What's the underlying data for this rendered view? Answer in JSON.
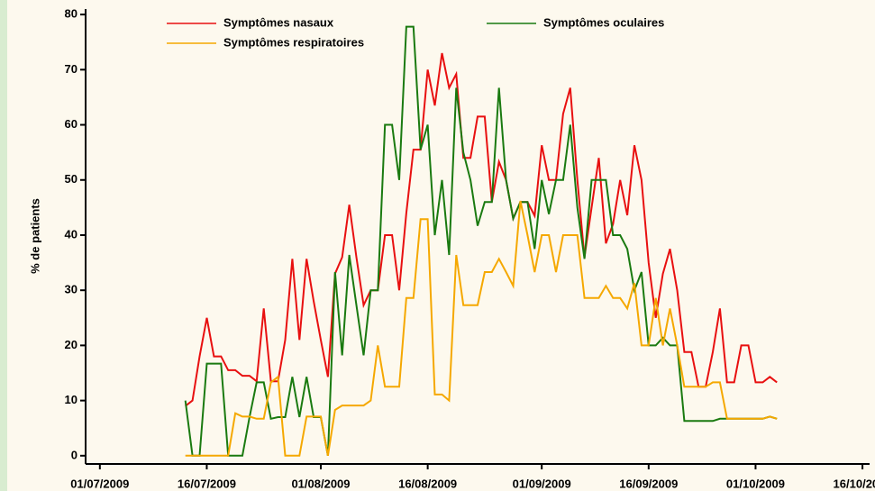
{
  "chart_data": {
    "type": "line",
    "ylabel": "% de patients",
    "x": [
      "2009-07-13",
      "2009-07-14",
      "2009-07-15",
      "2009-07-16",
      "2009-07-17",
      "2009-07-18",
      "2009-07-19",
      "2009-07-20",
      "2009-07-21",
      "2009-07-22",
      "2009-07-23",
      "2009-07-24",
      "2009-07-25",
      "2009-07-26",
      "2009-07-27",
      "2009-07-28",
      "2009-07-29",
      "2009-07-30",
      "2009-07-31",
      "2009-08-01",
      "2009-08-02",
      "2009-08-03",
      "2009-08-04",
      "2009-08-05",
      "2009-08-06",
      "2009-08-07",
      "2009-08-08",
      "2009-08-09",
      "2009-08-10",
      "2009-08-11",
      "2009-08-12",
      "2009-08-13",
      "2009-08-14",
      "2009-08-15",
      "2009-08-16",
      "2009-08-17",
      "2009-08-18",
      "2009-08-19",
      "2009-08-20",
      "2009-08-21",
      "2009-08-22",
      "2009-08-23",
      "2009-08-24",
      "2009-08-25",
      "2009-08-26",
      "2009-08-27",
      "2009-08-28",
      "2009-08-29",
      "2009-08-30",
      "2009-08-31",
      "2009-09-01",
      "2009-09-02",
      "2009-09-03",
      "2009-09-04",
      "2009-09-05",
      "2009-09-06",
      "2009-09-07",
      "2009-09-08",
      "2009-09-09",
      "2009-09-10",
      "2009-09-11",
      "2009-09-12",
      "2009-09-13",
      "2009-09-14",
      "2009-09-15",
      "2009-09-16",
      "2009-09-17",
      "2009-09-18",
      "2009-09-19",
      "2009-09-20",
      "2009-09-21",
      "2009-09-22",
      "2009-09-23",
      "2009-09-24",
      "2009-09-25",
      "2009-09-26",
      "2009-09-27",
      "2009-09-28",
      "2009-09-29",
      "2009-09-30",
      "2009-10-01",
      "2009-10-02",
      "2009-10-03",
      "2009-10-04"
    ],
    "series": [
      {
        "name": "Symptômes nasaux",
        "color": "#e81010",
        "values": [
          9,
          10,
          18,
          25,
          18,
          18,
          15.5,
          15.5,
          14.5,
          14.5,
          13.5,
          26.7,
          13.5,
          13.5,
          21,
          35.7,
          21,
          35.7,
          28,
          21,
          14.3,
          33,
          36,
          45.5,
          36,
          27.3,
          30,
          30,
          40,
          40,
          30,
          44,
          55.5,
          55.5,
          70,
          63.5,
          73,
          66.7,
          69.2,
          54,
          54,
          61.5,
          61.5,
          46,
          53.3,
          50,
          43,
          46,
          46,
          43.5,
          56.3,
          50,
          50,
          62,
          66.7,
          50,
          36,
          45,
          54,
          38.5,
          42,
          50,
          43.6,
          56.3,
          50,
          35,
          25,
          33,
          37.5,
          30,
          18.8,
          18.8,
          12.5,
          12.5,
          18.8,
          26.7,
          13.3,
          13.3,
          20,
          20,
          13.3,
          13.3,
          14.3,
          13.3
        ]
      },
      {
        "name": "Symptômes oculaires",
        "color": "#1a7a10",
        "values": [
          10,
          0,
          0,
          16.7,
          16.7,
          16.7,
          0,
          0,
          0,
          7,
          13.3,
          13.3,
          6.7,
          7,
          7,
          14.3,
          7,
          14.3,
          7,
          7,
          0,
          33.3,
          18.2,
          36.4,
          27.3,
          18.2,
          30,
          30,
          60,
          60,
          50,
          77.8,
          77.8,
          55.5,
          60,
          40,
          50,
          36.4,
          66.7,
          55,
          50,
          41.7,
          46,
          46,
          66.7,
          50,
          43,
          46,
          46,
          37.5,
          50,
          43.8,
          50,
          50,
          60,
          45,
          35.7,
          50,
          50,
          50,
          40,
          40,
          37.5,
          30,
          33.3,
          20,
          20,
          21.4,
          20,
          20,
          6.3,
          6.3,
          6.3,
          6.3,
          6.3,
          6.7,
          6.7,
          6.7,
          6.7,
          6.7,
          6.7,
          6.7,
          7.1,
          6.7
        ]
      },
      {
        "name": "Symptômes respiratoires",
        "color": "#f5a800",
        "values": [
          0,
          0,
          0,
          0,
          0,
          0,
          0,
          7.7,
          7.1,
          7.1,
          6.7,
          6.7,
          13.3,
          14.3,
          0,
          0,
          0,
          7.1,
          7.1,
          7.1,
          0,
          8.3,
          9.1,
          9.1,
          9.1,
          9.1,
          10,
          20,
          12.5,
          12.5,
          12.5,
          28.6,
          28.6,
          42.9,
          42.9,
          11.1,
          11.1,
          10,
          36.4,
          27.3,
          27.3,
          27.3,
          33.3,
          33.3,
          35.7,
          33.3,
          30.8,
          46.2,
          40,
          33.3,
          40,
          40,
          33.3,
          40,
          40,
          40,
          28.6,
          28.6,
          28.6,
          30.8,
          28.6,
          28.6,
          26.7,
          31.3,
          20,
          20,
          28.6,
          20,
          26.7,
          20,
          12.5,
          12.5,
          12.5,
          12.5,
          13.3,
          13.3,
          6.7,
          6.7,
          6.7,
          6.7,
          6.7,
          6.7,
          7.1,
          6.7
        ]
      }
    ],
    "xlim": [
      "2009-06-29",
      "2009-10-17"
    ],
    "xticks": [
      {
        "value": "2009-07-01",
        "label": "01/07/2009"
      },
      {
        "value": "2009-07-16",
        "label": "16/07/2009"
      },
      {
        "value": "2009-08-01",
        "label": "01/08/2009"
      },
      {
        "value": "2009-08-16",
        "label": "16/08/2009"
      },
      {
        "value": "2009-09-01",
        "label": "01/09/2009"
      },
      {
        "value": "2009-09-16",
        "label": "16/09/2009"
      },
      {
        "value": "2009-10-01",
        "label": "01/10/2009"
      },
      {
        "value": "2009-10-16",
        "label": "16/10/2009"
      }
    ],
    "ylim": [
      -1.5,
      81
    ],
    "yticks": [
      0,
      10,
      20,
      30,
      40,
      50,
      60,
      70,
      80
    ],
    "legend": "top"
  }
}
